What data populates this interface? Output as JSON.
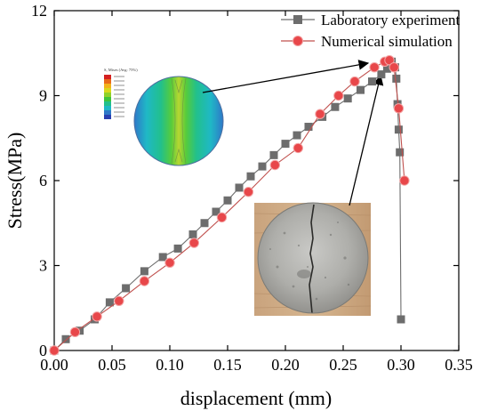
{
  "chart_data": {
    "type": "line",
    "xlabel": "displacement (mm)",
    "ylabel": "Stress(MPa)",
    "xlim": [
      0,
      0.35
    ],
    "ylim": [
      0,
      12
    ],
    "x_ticks": [
      "0.00",
      "0.05",
      "0.10",
      "0.15",
      "0.20",
      "0.25",
      "0.30",
      "0.35"
    ],
    "y_ticks": [
      "0",
      "3",
      "6",
      "9",
      "12"
    ],
    "legend_position": "top-right",
    "series": [
      {
        "name": "Laboratory experiment",
        "color": "#6d6d6d",
        "marker": "square",
        "points": [
          [
            0,
            0
          ],
          [
            0.01,
            0.4
          ],
          [
            0.022,
            0.7
          ],
          [
            0.035,
            1.1
          ],
          [
            0.048,
            1.7
          ],
          [
            0.062,
            2.2
          ],
          [
            0.078,
            2.8
          ],
          [
            0.094,
            3.3
          ],
          [
            0.107,
            3.6
          ],
          [
            0.12,
            4.1
          ],
          [
            0.13,
            4.5
          ],
          [
            0.14,
            4.9
          ],
          [
            0.15,
            5.3
          ],
          [
            0.16,
            5.75
          ],
          [
            0.17,
            6.15
          ],
          [
            0.18,
            6.5
          ],
          [
            0.19,
            6.9
          ],
          [
            0.2,
            7.3
          ],
          [
            0.21,
            7.6
          ],
          [
            0.22,
            7.9
          ],
          [
            0.232,
            8.25
          ],
          [
            0.243,
            8.6
          ],
          [
            0.254,
            8.9
          ],
          [
            0.265,
            9.2
          ],
          [
            0.275,
            9.5
          ],
          [
            0.283,
            9.75
          ],
          [
            0.288,
            9.95
          ],
          [
            0.292,
            10.2
          ],
          [
            0.295,
            10.0
          ],
          [
            0.296,
            9.6
          ],
          [
            0.297,
            8.7
          ],
          [
            0.298,
            7.8
          ],
          [
            0.299,
            7.0
          ],
          [
            0.3,
            1.1
          ]
        ]
      },
      {
        "name": "Numerical simulation",
        "color": "#c0504d",
        "marker": "circle",
        "points": [
          [
            0,
            0
          ],
          [
            0.018,
            0.65
          ],
          [
            0.037,
            1.2
          ],
          [
            0.056,
            1.75
          ],
          [
            0.078,
            2.45
          ],
          [
            0.1,
            3.1
          ],
          [
            0.121,
            3.8
          ],
          [
            0.145,
            4.7
          ],
          [
            0.168,
            5.6
          ],
          [
            0.191,
            6.55
          ],
          [
            0.211,
            7.15
          ],
          [
            0.23,
            8.35
          ],
          [
            0.246,
            9.0
          ],
          [
            0.26,
            9.5
          ],
          [
            0.277,
            10.0
          ],
          [
            0.286,
            10.2
          ],
          [
            0.29,
            10.25
          ],
          [
            0.294,
            10.0
          ],
          [
            0.298,
            8.55
          ],
          [
            0.303,
            6.0
          ]
        ]
      }
    ],
    "insets": [
      {
        "kind": "simulation-contour",
        "colorbar_title": "S, Mises (Avg: 75%)",
        "points_to": [
          0.285,
          10.2
        ]
      },
      {
        "kind": "specimen-photo",
        "points_to": [
          0.294,
          10.0
        ]
      }
    ]
  }
}
